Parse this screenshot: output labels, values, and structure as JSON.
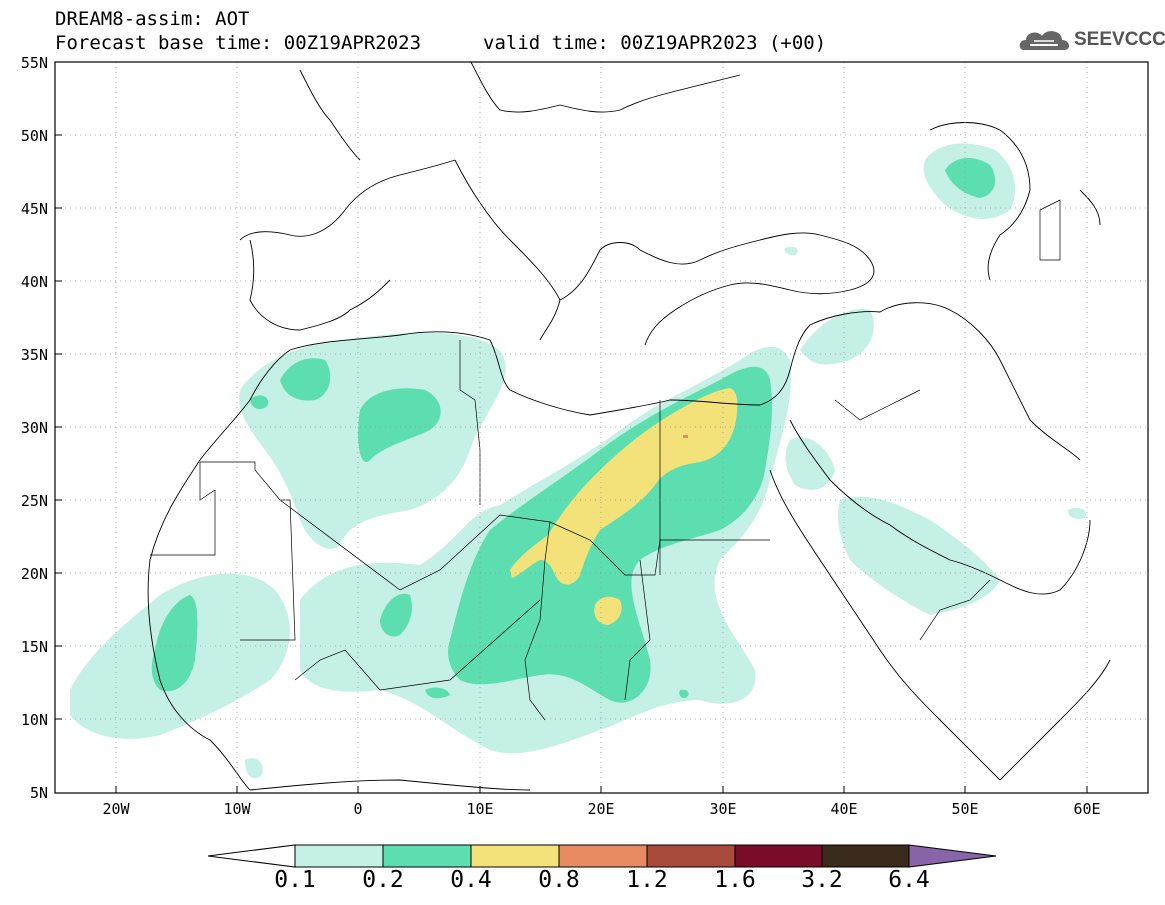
{
  "title": {
    "line1": "DREAM8-assim: AOT",
    "line2": "Forecast base time: 00Z19APR2023",
    "line2_valid": "valid time: 00Z19APR2023 (+00)"
  },
  "logo": {
    "text": "SEEVCCC",
    "icon": "cloud-icon"
  },
  "map": {
    "lon_range": [
      -25,
      65
    ],
    "lat_range": [
      5,
      55
    ],
    "lat_labels": [
      "55N",
      "50N",
      "45N",
      "40N",
      "35N",
      "30N",
      "25N",
      "20N",
      "15N",
      "10N",
      "5N"
    ],
    "lon_labels": [
      "20W",
      "10W",
      "0",
      "10E",
      "20E",
      "30E",
      "40E",
      "50E",
      "60E"
    ],
    "gridlines": "dotted"
  },
  "colorbar": {
    "levels": [
      "0.1",
      "0.2",
      "0.4",
      "0.8",
      "1.2",
      "1.6",
      "3.2",
      "6.4"
    ],
    "colors": [
      "#c5f0e6",
      "#5ddeb0",
      "#f3e27a",
      "#e88b62",
      "#a84a3c",
      "#7a0c2a",
      "#3a2a1c",
      "#8a64a8"
    ],
    "under_color": "#ffffff"
  }
}
